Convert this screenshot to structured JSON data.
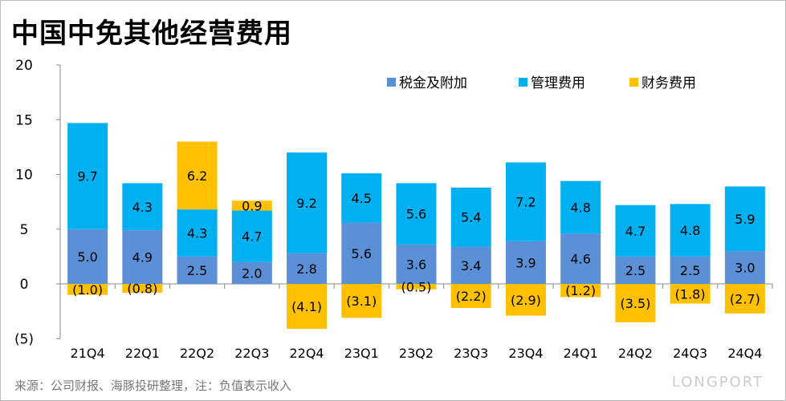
{
  "title": "中国中免其他经营费用",
  "source": "来源：公司财报、海豚投研整理，注：负值表示收入",
  "brand": "LONGPORT",
  "chart_data": {
    "type": "bar",
    "stacked": true,
    "title": "中国中免其他经营费用",
    "categories": [
      "21Q4",
      "22Q1",
      "22Q2",
      "22Q3",
      "22Q4",
      "23Q1",
      "23Q2",
      "23Q3",
      "23Q4",
      "24Q1",
      "24Q2",
      "24Q3",
      "24Q4"
    ],
    "series": [
      {
        "name": "税金及附加",
        "color": "#5B8FD6",
        "values": [
          5.0,
          4.9,
          2.5,
          2.0,
          2.8,
          5.6,
          3.6,
          3.4,
          3.9,
          4.6,
          2.5,
          2.5,
          3.0
        ]
      },
      {
        "name": "管理费用",
        "color": "#00B0F0",
        "values": [
          9.7,
          4.3,
          4.3,
          4.7,
          9.2,
          4.5,
          5.6,
          5.4,
          7.2,
          4.8,
          4.7,
          4.8,
          5.9
        ]
      },
      {
        "name": "财务费用",
        "color": "#FFC000",
        "values": [
          -1.0,
          -0.8,
          6.2,
          0.9,
          -4.1,
          -3.1,
          -0.5,
          -2.2,
          -2.9,
          -1.2,
          -3.5,
          -1.8,
          -2.7
        ]
      }
    ],
    "ylim": [
      -5,
      20
    ],
    "yticks": [
      20,
      15,
      10,
      5,
      0,
      -5
    ],
    "ytick_labels": [
      "20",
      "15",
      "10",
      "5",
      "0",
      "(5)"
    ],
    "legend": "top-right",
    "grid": false
  }
}
